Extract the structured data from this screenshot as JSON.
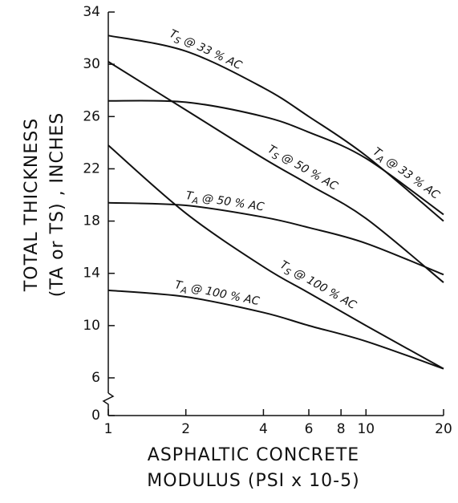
{
  "chart_data": {
    "type": "line",
    "xlabel": [
      "ASPHALTIC CONCRETE",
      "MODULUS (PSI x 10-5)"
    ],
    "ylabel": [
      "TOTAL THICKNESS",
      "(TA or TS) , INCHES"
    ],
    "x": [
      1,
      2,
      4,
      6,
      10,
      20
    ],
    "xlim": [
      1,
      20
    ],
    "xticks": [
      1,
      2,
      4,
      6,
      8,
      10,
      20
    ],
    "xscale": "log",
    "ylim": [
      0,
      34
    ],
    "yticks": [
      0,
      6,
      10,
      14,
      18,
      22,
      26,
      30,
      34
    ],
    "axis_break": true,
    "series": [
      {
        "name": "TS @ 33 % AC",
        "color": "#111111",
        "values": [
          32.2,
          31.0,
          28.2,
          26.0,
          23.0,
          18.0
        ]
      },
      {
        "name": "TA @ 33 % AC",
        "color": "#111111",
        "values": [
          27.2,
          27.1,
          26.0,
          24.8,
          22.8,
          18.5
        ]
      },
      {
        "name": "TS @ 50 % AC",
        "color": "#111111",
        "values": [
          30.2,
          26.5,
          22.8,
          20.8,
          18.2,
          13.3
        ]
      },
      {
        "name": "TA @ 50 % AC",
        "color": "#111111",
        "values": [
          19.4,
          19.2,
          18.3,
          17.5,
          16.3,
          13.9
        ]
      },
      {
        "name": "TS @ 100 % AC",
        "color": "#111111",
        "values": [
          23.8,
          18.6,
          14.5,
          12.5,
          10.0,
          6.7
        ]
      },
      {
        "name": "TA @ 100 % AC",
        "color": "#111111",
        "values": [
          12.7,
          12.2,
          11.0,
          10.0,
          8.8,
          6.7
        ]
      }
    ]
  }
}
